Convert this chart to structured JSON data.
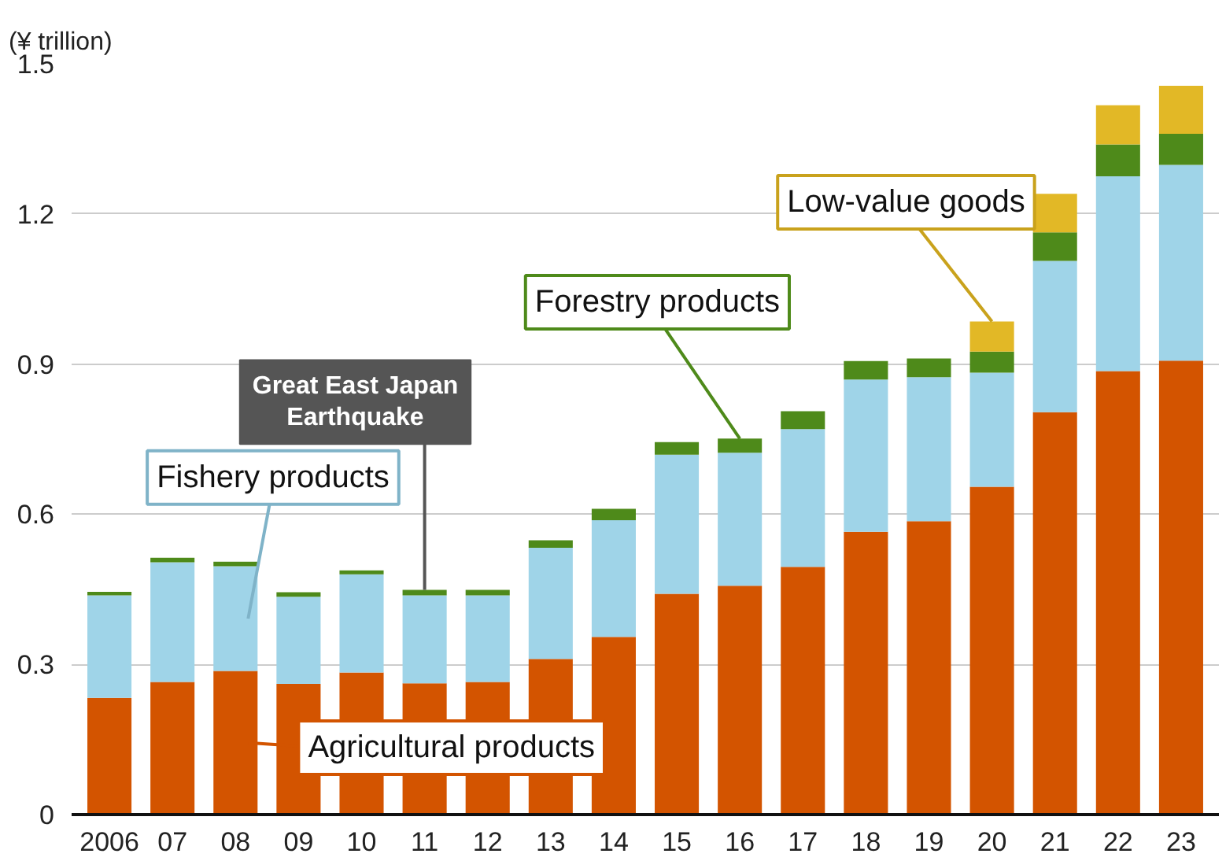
{
  "chart_data": {
    "type": "bar",
    "stacked": true,
    "ylabel": "(¥ trillion)",
    "categories": [
      "2006",
      "07",
      "08",
      "09",
      "10",
      "11",
      "12",
      "13",
      "14",
      "15",
      "16",
      "17",
      "18",
      "19",
      "20",
      "21",
      "22",
      "23"
    ],
    "series": [
      {
        "name": "Agricultural products",
        "color": "#d35400",
        "values": [
          0.233,
          0.265,
          0.287,
          0.261,
          0.284,
          0.262,
          0.265,
          0.311,
          0.355,
          0.441,
          0.457,
          0.495,
          0.565,
          0.586,
          0.655,
          0.804,
          0.886,
          0.907
        ]
      },
      {
        "name": "Fishery products",
        "color": "#9fd4e8",
        "values": [
          0.205,
          0.239,
          0.209,
          0.174,
          0.196,
          0.176,
          0.173,
          0.222,
          0.233,
          0.278,
          0.266,
          0.275,
          0.304,
          0.288,
          0.228,
          0.302,
          0.389,
          0.391
        ]
      },
      {
        "name": "Forestry products",
        "color": "#4e8a1a",
        "values": [
          0.007,
          0.009,
          0.009,
          0.009,
          0.008,
          0.011,
          0.011,
          0.015,
          0.023,
          0.025,
          0.028,
          0.036,
          0.037,
          0.037,
          0.042,
          0.057,
          0.064,
          0.062
        ]
      },
      {
        "name": "Low-value goods",
        "color": "#e2b826",
        "values": [
          null,
          null,
          null,
          null,
          null,
          null,
          null,
          null,
          null,
          null,
          null,
          null,
          null,
          null,
          0.06,
          0.077,
          0.078,
          0.096
        ]
      }
    ],
    "annotations": [
      {
        "text": "Great East Japan Earthquake",
        "x": "11",
        "y": 0.449
      }
    ],
    "ylim": [
      0,
      1.5
    ],
    "yticks": [
      0,
      0.3,
      0.6,
      0.9,
      1.2,
      1.5
    ],
    "grid": "y"
  }
}
